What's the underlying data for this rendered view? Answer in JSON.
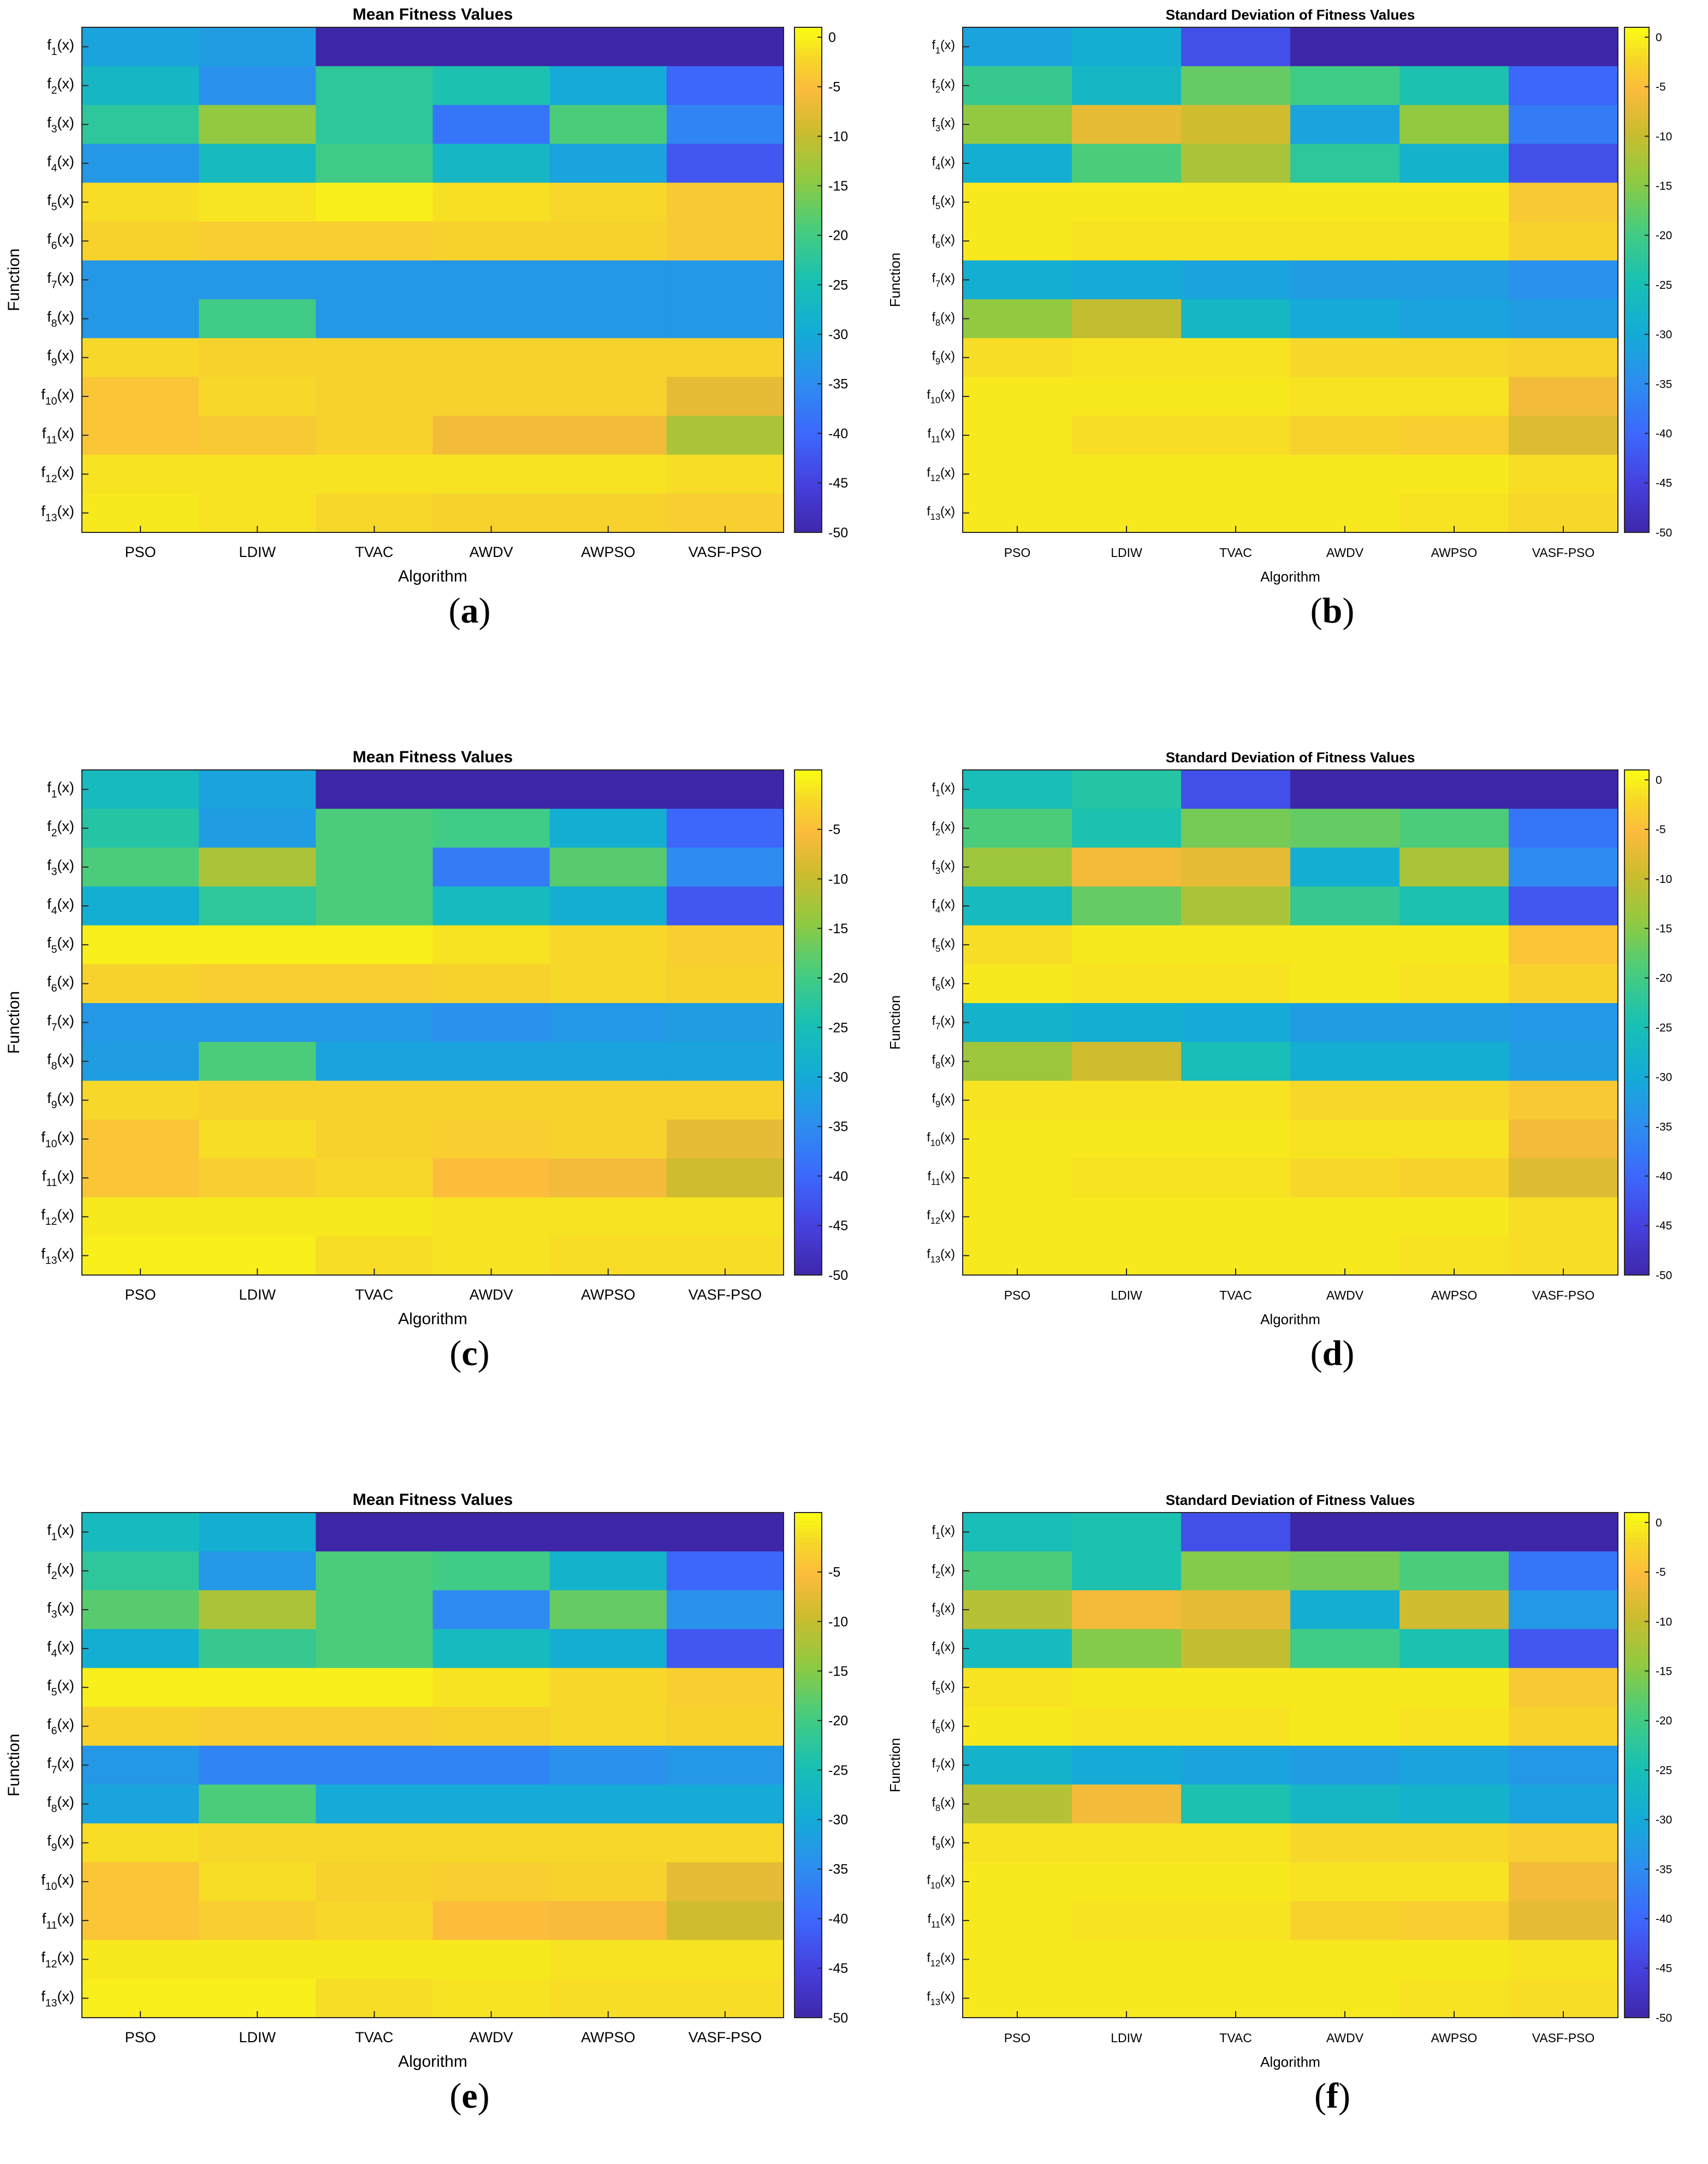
{
  "figure": {
    "algorithms": [
      "PSO",
      "LDIW",
      "TVAC",
      "AWDV",
      "AWPSO",
      "VASF-PSO"
    ],
    "functions": [
      {
        "base": "f",
        "sub": "1",
        "suffix": "(x)"
      },
      {
        "base": "f",
        "sub": "2",
        "suffix": "(x)"
      },
      {
        "base": "f",
        "sub": "3",
        "suffix": "(x)"
      },
      {
        "base": "f",
        "sub": "4",
        "suffix": "(x)"
      },
      {
        "base": "f",
        "sub": "5",
        "suffix": "(x)"
      },
      {
        "base": "f",
        "sub": "6",
        "suffix": "(x)"
      },
      {
        "base": "f",
        "sub": "7",
        "suffix": "(x)"
      },
      {
        "base": "f",
        "sub": "8",
        "suffix": "(x)"
      },
      {
        "base": "f",
        "sub": "9",
        "suffix": "(x)"
      },
      {
        "base": "f",
        "sub": "10",
        "suffix": "(x)"
      },
      {
        "base": "f",
        "sub": "11",
        "suffix": "(x)"
      },
      {
        "base": "f",
        "sub": "12",
        "suffix": "(x)"
      },
      {
        "base": "f",
        "sub": "13",
        "suffix": "(x)"
      }
    ],
    "colormap": "parula"
  },
  "chart_data": [
    {
      "id": "a",
      "caption_letter": "a",
      "type": "heatmap",
      "title": "Mean Fitness Values",
      "xlabel": "Algorithm",
      "ylabel": "Function",
      "clim": [
        -50,
        1
      ],
      "colorbar_ticks": [
        0,
        -5,
        -10,
        -15,
        -20,
        -25,
        -30,
        -35,
        -40,
        -45,
        -50
      ],
      "values": [
        [
          -31,
          -32,
          -50,
          -50,
          -50,
          -50
        ],
        [
          -27,
          -34,
          -22,
          -24,
          -30,
          -40
        ],
        [
          -22,
          -14,
          -22,
          -38,
          -19,
          -36
        ],
        [
          -33,
          -26,
          -20,
          -27,
          -31,
          -42
        ],
        [
          -1.5,
          -0.8,
          0,
          -1.2,
          -2,
          -3.5
        ],
        [
          -2.5,
          -3,
          -3,
          -2.5,
          -2.5,
          -3.5
        ],
        [
          -33,
          -33,
          -33,
          -33,
          -33,
          -33
        ],
        [
          -33,
          -20,
          -33,
          -33,
          -33,
          -33
        ],
        [
          -2,
          -2.5,
          -2.5,
          -2.5,
          -2.5,
          -2.5
        ],
        [
          -4,
          -2,
          -2.5,
          -2.5,
          -2.5,
          -7
        ],
        [
          -4,
          -3.5,
          -2.5,
          -6,
          -6,
          -12
        ],
        [
          -1,
          -1,
          -1,
          -1,
          -1,
          -1.5
        ],
        [
          -0.5,
          -1,
          -2,
          -2.5,
          -2.5,
          -3
        ]
      ]
    },
    {
      "id": "b",
      "caption_letter": "b",
      "type": "heatmap",
      "title": "Standard Deviation of Fitness Values",
      "xlabel": "Algorithm",
      "ylabel": "Function",
      "clim": [
        -50,
        1
      ],
      "colorbar_ticks": [
        0,
        -5,
        -10,
        -15,
        -20,
        -25,
        -30,
        -35,
        -40,
        -45,
        -50
      ],
      "values": [
        [
          -31,
          -29,
          -43,
          -50,
          -50,
          -50
        ],
        [
          -21,
          -27,
          -17,
          -20,
          -24,
          -40
        ],
        [
          -14,
          -7,
          -9,
          -31,
          -14,
          -37
        ],
        [
          -29,
          -19,
          -12,
          -22,
          -28,
          -43
        ],
        [
          -0.5,
          -0.5,
          -0.5,
          -0.5,
          -0.5,
          -3.5
        ],
        [
          -0.5,
          -1,
          -1,
          -1,
          -1,
          -2.5
        ],
        [
          -29,
          -30,
          -31,
          -32,
          -32,
          -34
        ],
        [
          -14,
          -10,
          -27,
          -30,
          -31,
          -32
        ],
        [
          -1.5,
          -1,
          -1,
          -2,
          -2,
          -2.5
        ],
        [
          -0.5,
          -0.5,
          -0.5,
          -1,
          -1,
          -6
        ],
        [
          -0.5,
          -1.5,
          -1.5,
          -2.5,
          -3,
          -8
        ],
        [
          -0.5,
          -0.5,
          -0.5,
          -0.5,
          -0.5,
          -1.5
        ],
        [
          -0.5,
          -0.5,
          -0.5,
          -0.5,
          -1,
          -2
        ]
      ]
    },
    {
      "id": "c",
      "caption_letter": "c",
      "type": "heatmap",
      "title": "Mean Fitness Values",
      "xlabel": "Algorithm",
      "ylabel": "Function",
      "clim": [
        -50,
        1
      ],
      "colorbar_ticks": [
        -5,
        -10,
        -15,
        -20,
        -25,
        -30,
        -35,
        -40,
        -45,
        -50
      ],
      "values": [
        [
          -26,
          -31,
          -50,
          -50,
          -50,
          -50
        ],
        [
          -23,
          -32,
          -19,
          -20,
          -29,
          -40
        ],
        [
          -19,
          -12,
          -19,
          -37,
          -18,
          -35
        ],
        [
          -29,
          -22,
          -19,
          -26,
          -29,
          -42
        ],
        [
          0,
          0,
          0,
          -1,
          -2,
          -3
        ],
        [
          -2.5,
          -3,
          -3,
          -2.5,
          -2,
          -2.5
        ],
        [
          -33,
          -33,
          -33,
          -34,
          -33,
          -32
        ],
        [
          -32,
          -19,
          -31,
          -31,
          -31,
          -31
        ],
        [
          -2,
          -2.5,
          -2.5,
          -2.5,
          -2.5,
          -2.5
        ],
        [
          -4,
          -1.5,
          -2.5,
          -3,
          -2.5,
          -7
        ],
        [
          -4,
          -3,
          -2,
          -5,
          -6,
          -9
        ],
        [
          -0.5,
          -0.5,
          -0.5,
          -1,
          -1,
          -1
        ],
        [
          0,
          0,
          -1.5,
          -1,
          -1.5,
          -1.5
        ]
      ]
    },
    {
      "id": "d",
      "caption_letter": "d",
      "type": "heatmap",
      "title": "Standard Deviation of Fitness Values",
      "xlabel": "Algorithm",
      "ylabel": "Function",
      "clim": [
        -50,
        1
      ],
      "colorbar_ticks": [
        0,
        -5,
        -10,
        -15,
        -20,
        -25,
        -30,
        -35,
        -40,
        -45,
        -50
      ],
      "values": [
        [
          -25,
          -23,
          -43,
          -50,
          -50,
          -50
        ],
        [
          -19,
          -24,
          -16,
          -17,
          -19,
          -38
        ],
        [
          -13,
          -6,
          -7,
          -29,
          -12,
          -35
        ],
        [
          -26,
          -17,
          -12,
          -21,
          -24,
          -42
        ],
        [
          -1.5,
          -0.5,
          -0.5,
          -0.5,
          -0.5,
          -4
        ],
        [
          -0.5,
          -1,
          -1,
          -0.5,
          -1,
          -2.5
        ],
        [
          -28,
          -29,
          -30,
          -32,
          -32,
          -33
        ],
        [
          -13,
          -9,
          -25,
          -29,
          -29,
          -32
        ],
        [
          -1,
          -1,
          -1,
          -2,
          -2,
          -3.5
        ],
        [
          -0.5,
          -0.5,
          -0.5,
          -1,
          -1,
          -6
        ],
        [
          -0.5,
          -1,
          -1,
          -2,
          -2.5,
          -8
        ],
        [
          -0.5,
          -0.5,
          -0.5,
          -0.5,
          -0.5,
          -1.5
        ],
        [
          -0.5,
          -0.5,
          -0.5,
          -0.5,
          -1,
          -1.5
        ]
      ]
    },
    {
      "id": "e",
      "caption_letter": "e",
      "type": "heatmap",
      "title": "Mean Fitness Values",
      "xlabel": "Algorithm",
      "ylabel": "Function",
      "clim": [
        -50,
        1
      ],
      "colorbar_ticks": [
        -5,
        -10,
        -15,
        -20,
        -25,
        -30,
        -35,
        -40,
        -45,
        -50
      ],
      "values": [
        [
          -26,
          -29,
          -50,
          -50,
          -50,
          -50
        ],
        [
          -22,
          -33,
          -19,
          -20,
          -28,
          -40
        ],
        [
          -18,
          -12,
          -19,
          -35,
          -17,
          -34
        ],
        [
          -29,
          -21,
          -19,
          -26,
          -29,
          -42
        ],
        [
          0,
          0,
          0,
          -1,
          -2,
          -3
        ],
        [
          -2.5,
          -3,
          -3,
          -2.5,
          -2,
          -2.5
        ],
        [
          -33,
          -36,
          -36,
          -36,
          -34,
          -33
        ],
        [
          -31,
          -19,
          -30,
          -30,
          -30,
          -30
        ],
        [
          -1.5,
          -2,
          -2,
          -2,
          -2,
          -2
        ],
        [
          -4,
          -1.5,
          -2.5,
          -3,
          -2.5,
          -7
        ],
        [
          -4,
          -3,
          -2,
          -5,
          -5.5,
          -9
        ],
        [
          -0.5,
          -0.5,
          -0.5,
          -0.5,
          -1,
          -1
        ],
        [
          0,
          0,
          -1.5,
          -1,
          -1.5,
          -1.5
        ]
      ]
    },
    {
      "id": "f",
      "caption_letter": "f",
      "type": "heatmap",
      "title": "Standard Deviation of Fitness Values",
      "xlabel": "Algorithm",
      "ylabel": "Function",
      "clim": [
        -50,
        1
      ],
      "colorbar_ticks": [
        0,
        -5,
        -10,
        -15,
        -20,
        -25,
        -30,
        -35,
        -40,
        -45,
        -50
      ],
      "values": [
        [
          -25,
          -24,
          -43,
          -50,
          -50,
          -50
        ],
        [
          -19,
          -24,
          -15,
          -16,
          -19,
          -38
        ],
        [
          -11,
          -6,
          -7,
          -29,
          -9,
          -33
        ],
        [
          -26,
          -15,
          -10,
          -20,
          -24,
          -42
        ],
        [
          -1,
          -0.5,
          -0.5,
          -0.5,
          -0.5,
          -3.5
        ],
        [
          -0.5,
          -1,
          -1,
          -0.5,
          -1,
          -2.5
        ],
        [
          -28,
          -30,
          -31,
          -32,
          -31,
          -33
        ],
        [
          -11,
          -6,
          -24,
          -27,
          -28,
          -31
        ],
        [
          -1,
          -1,
          -1,
          -2,
          -2,
          -3
        ],
        [
          -0.5,
          -0.5,
          -0.5,
          -1,
          -1,
          -6
        ],
        [
          -0.5,
          -1,
          -1,
          -2.5,
          -3,
          -7
        ],
        [
          -0.5,
          -0.5,
          -0.5,
          -0.5,
          -0.5,
          -1
        ],
        [
          -0.5,
          -0.5,
          -0.5,
          -0.5,
          -1,
          -1.5
        ]
      ]
    }
  ]
}
